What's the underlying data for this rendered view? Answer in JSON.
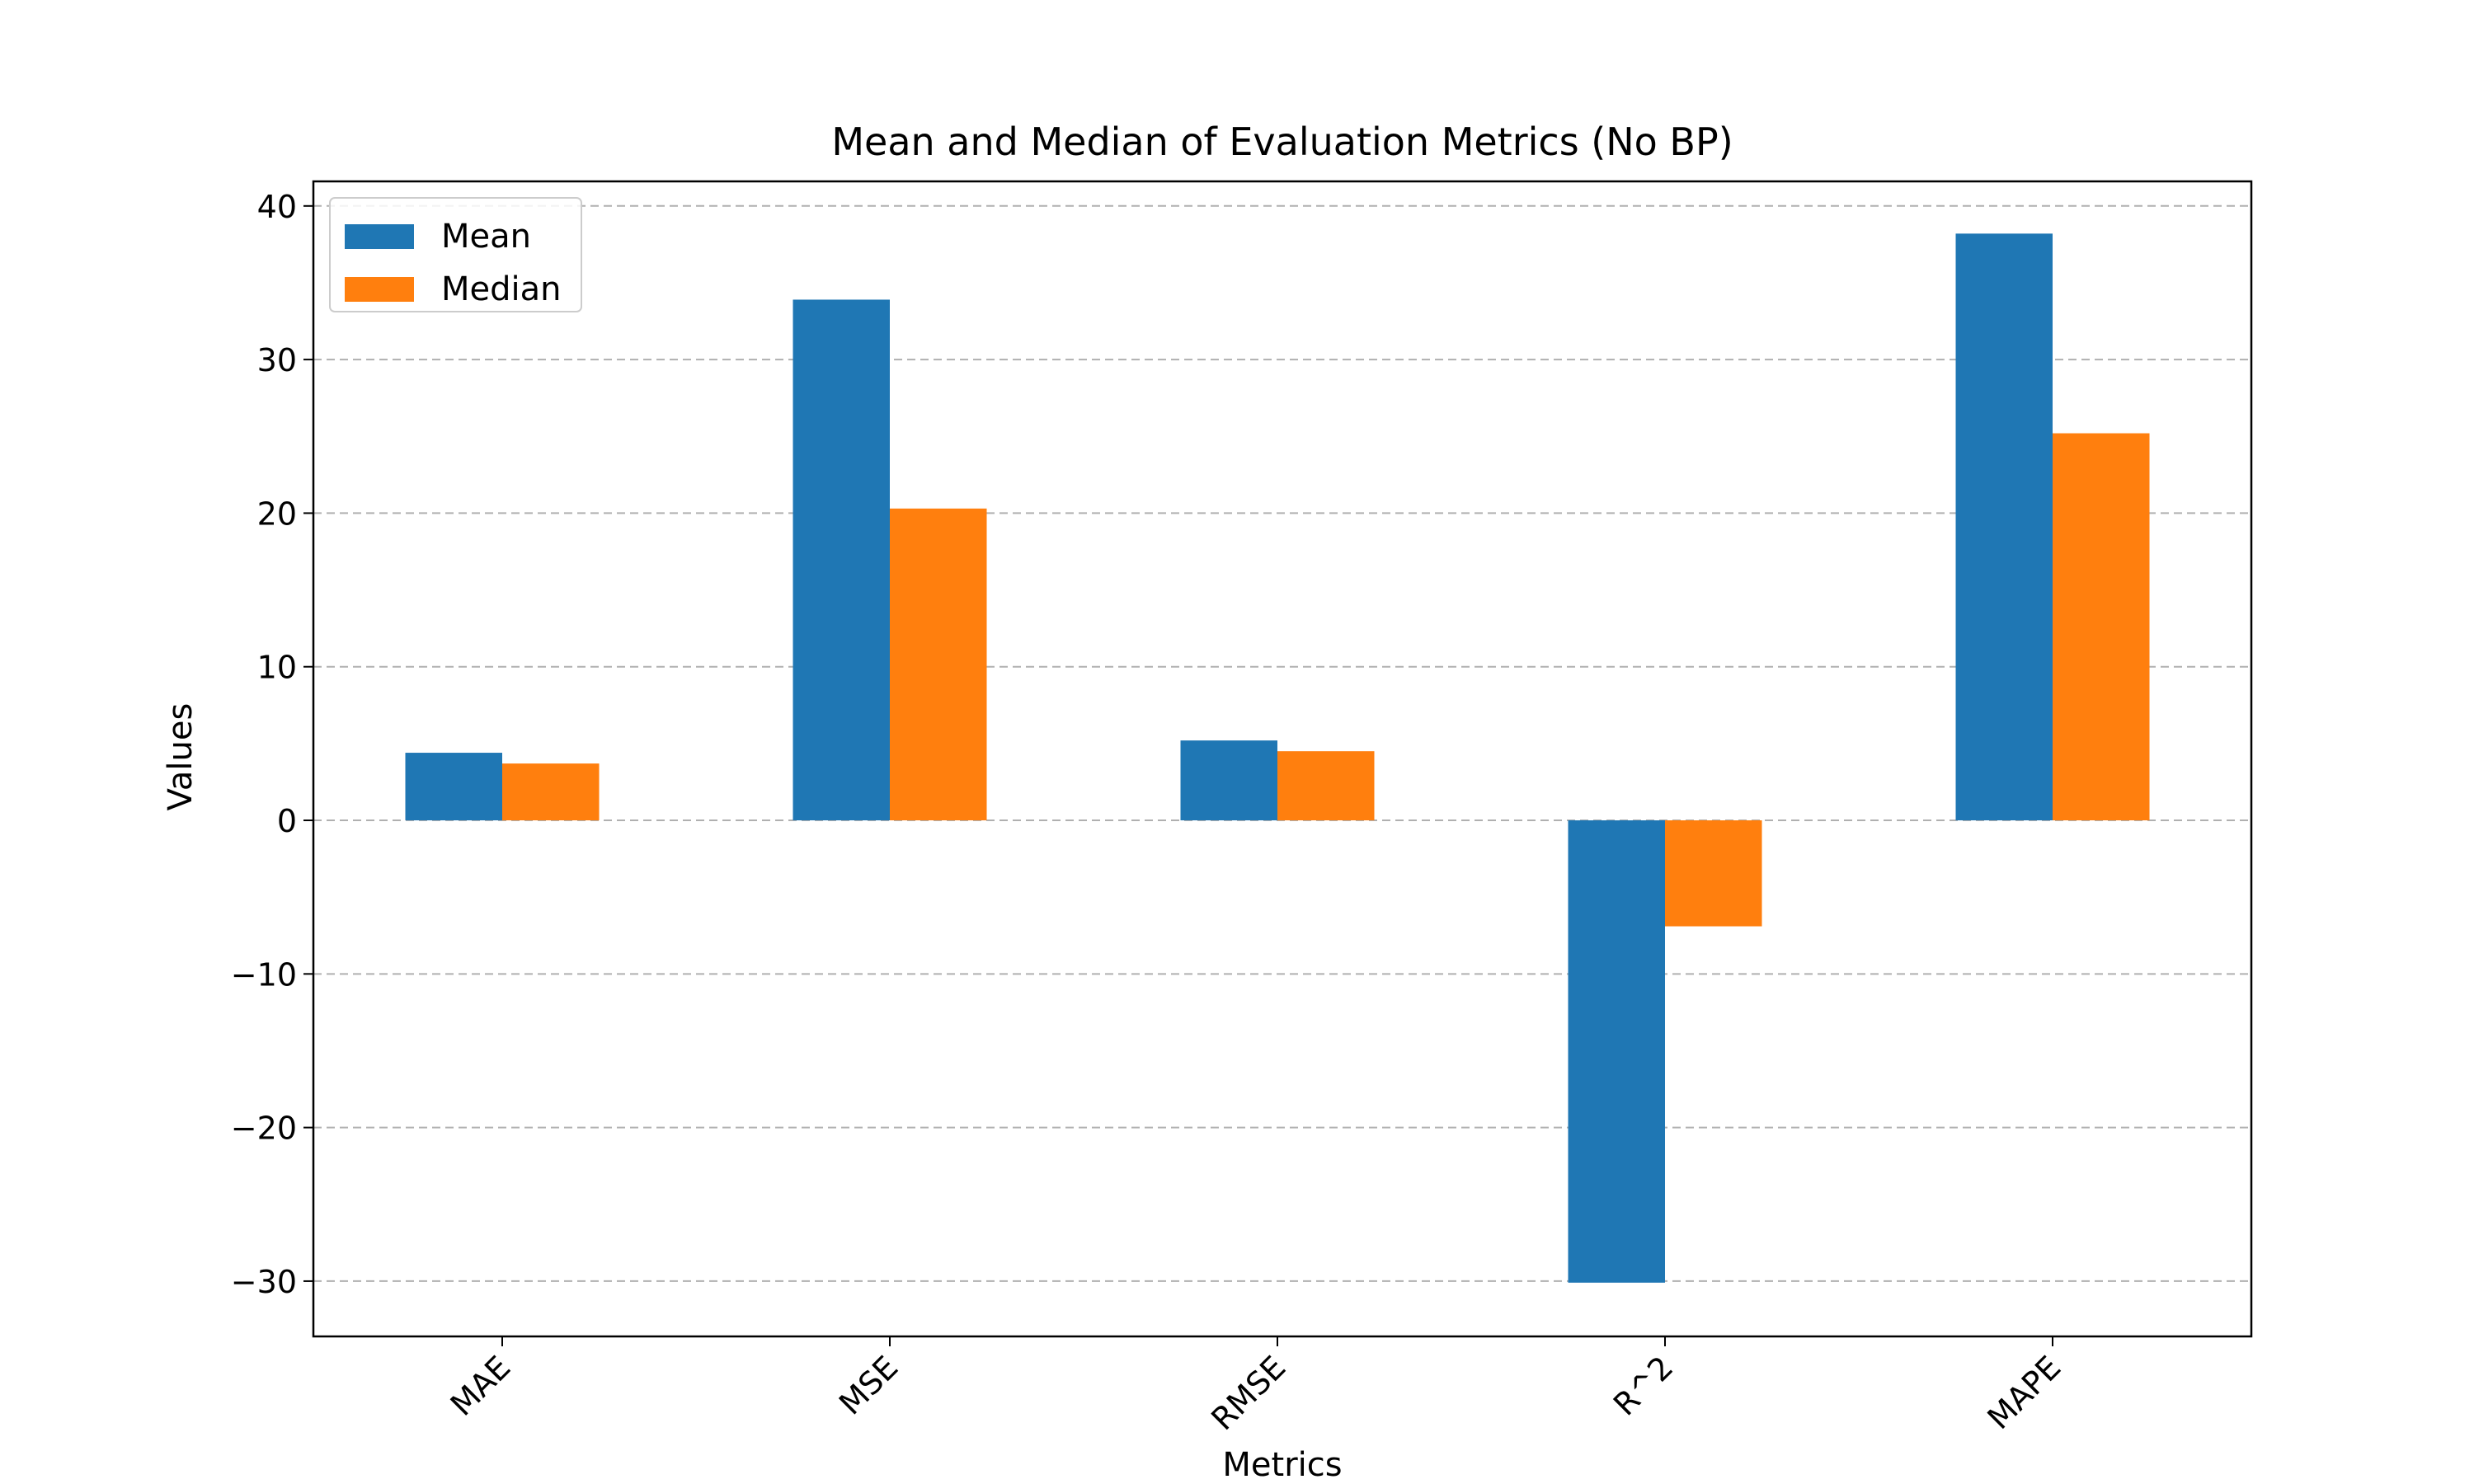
{
  "chart_data": {
    "type": "bar",
    "title": "Mean and Median of Evaluation Metrics (No BP)",
    "xlabel": "Metrics",
    "ylabel": "Values",
    "categories": [
      "MAE",
      "MSE",
      "RMSE",
      "R^2",
      "MAPE"
    ],
    "series": [
      {
        "name": "Mean",
        "color": "#1f77b4",
        "values": [
          4.4,
          33.9,
          5.2,
          -30.1,
          38.2
        ]
      },
      {
        "name": "Median",
        "color": "#ff7f0e",
        "values": [
          3.7,
          20.3,
          4.5,
          -6.9,
          25.2
        ]
      }
    ],
    "ylim": [
      -33.6,
      41.6
    ],
    "yticks": [
      -30,
      -20,
      -10,
      0,
      10,
      20,
      30,
      40
    ],
    "ytick_labels": [
      "−30",
      "−20",
      "−10",
      "0",
      "10",
      "20",
      "30",
      "40"
    ],
    "grid": "y-dashed",
    "legend_position": "upper-left",
    "xtick_rotation_deg": 45
  }
}
